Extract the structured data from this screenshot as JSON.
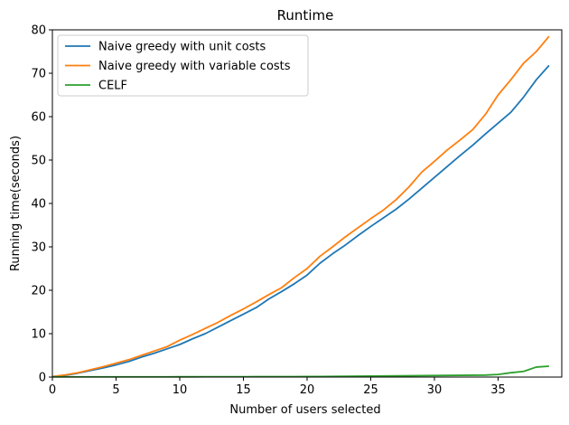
{
  "chart_data": {
    "type": "line",
    "title": "Runtime",
    "xlabel": "Number of users selected",
    "ylabel": "Running time(seconds)",
    "xlim": [
      0,
      40
    ],
    "ylim": [
      0,
      80
    ],
    "xticks": [
      0,
      5,
      10,
      15,
      20,
      25,
      30,
      35
    ],
    "yticks": [
      0,
      10,
      20,
      30,
      40,
      50,
      60,
      70,
      80
    ],
    "grid": false,
    "legend_position": "top-left",
    "x": [
      0,
      1,
      2,
      3,
      4,
      5,
      6,
      7,
      8,
      9,
      10,
      11,
      12,
      13,
      14,
      15,
      16,
      17,
      18,
      19,
      20,
      21,
      22,
      23,
      24,
      25,
      26,
      27,
      28,
      29,
      30,
      31,
      32,
      33,
      34,
      35,
      36,
      37,
      38,
      39
    ],
    "series": [
      {
        "name": "Naive greedy with unit costs",
        "color": "#1f77b4",
        "values": [
          0.1,
          0.4,
          0.9,
          1.5,
          2.1,
          2.8,
          3.6,
          4.6,
          5.5,
          6.5,
          7.5,
          8.8,
          10.0,
          11.5,
          13.0,
          14.5,
          16.0,
          18.0,
          19.7,
          21.5,
          23.5,
          26.2,
          28.4,
          30.4,
          32.6,
          34.7,
          36.7,
          38.7,
          41.0,
          43.5,
          46.0,
          48.5,
          51.0,
          53.4,
          56.0,
          58.5,
          61.0,
          64.5,
          68.5,
          71.8
        ]
      },
      {
        "name": "Naive greedy with variable costs",
        "color": "#ff7f0e",
        "values": [
          0.1,
          0.5,
          1.0,
          1.7,
          2.4,
          3.2,
          4.0,
          5.0,
          6.0,
          7.0,
          8.5,
          9.8,
          11.2,
          12.6,
          14.2,
          15.7,
          17.3,
          19.0,
          20.6,
          22.9,
          25.0,
          27.8,
          30.0,
          32.3,
          34.4,
          36.5,
          38.5,
          40.9,
          43.8,
          47.2,
          49.7,
          52.3,
          54.6,
          57.0,
          60.5,
          65.0,
          68.5,
          72.3,
          75.0,
          78.5
        ]
      },
      {
        "name": "CELF",
        "color": "#2ca02c",
        "values": [
          0.05,
          0.05,
          0.05,
          0.05,
          0.05,
          0.05,
          0.05,
          0.05,
          0.05,
          0.05,
          0.06,
          0.06,
          0.07,
          0.07,
          0.08,
          0.08,
          0.09,
          0.09,
          0.1,
          0.1,
          0.12,
          0.13,
          0.15,
          0.17,
          0.2,
          0.22,
          0.25,
          0.28,
          0.3,
          0.33,
          0.35,
          0.38,
          0.4,
          0.43,
          0.46,
          0.6,
          1.0,
          1.3,
          2.3,
          2.5
        ]
      }
    ]
  }
}
